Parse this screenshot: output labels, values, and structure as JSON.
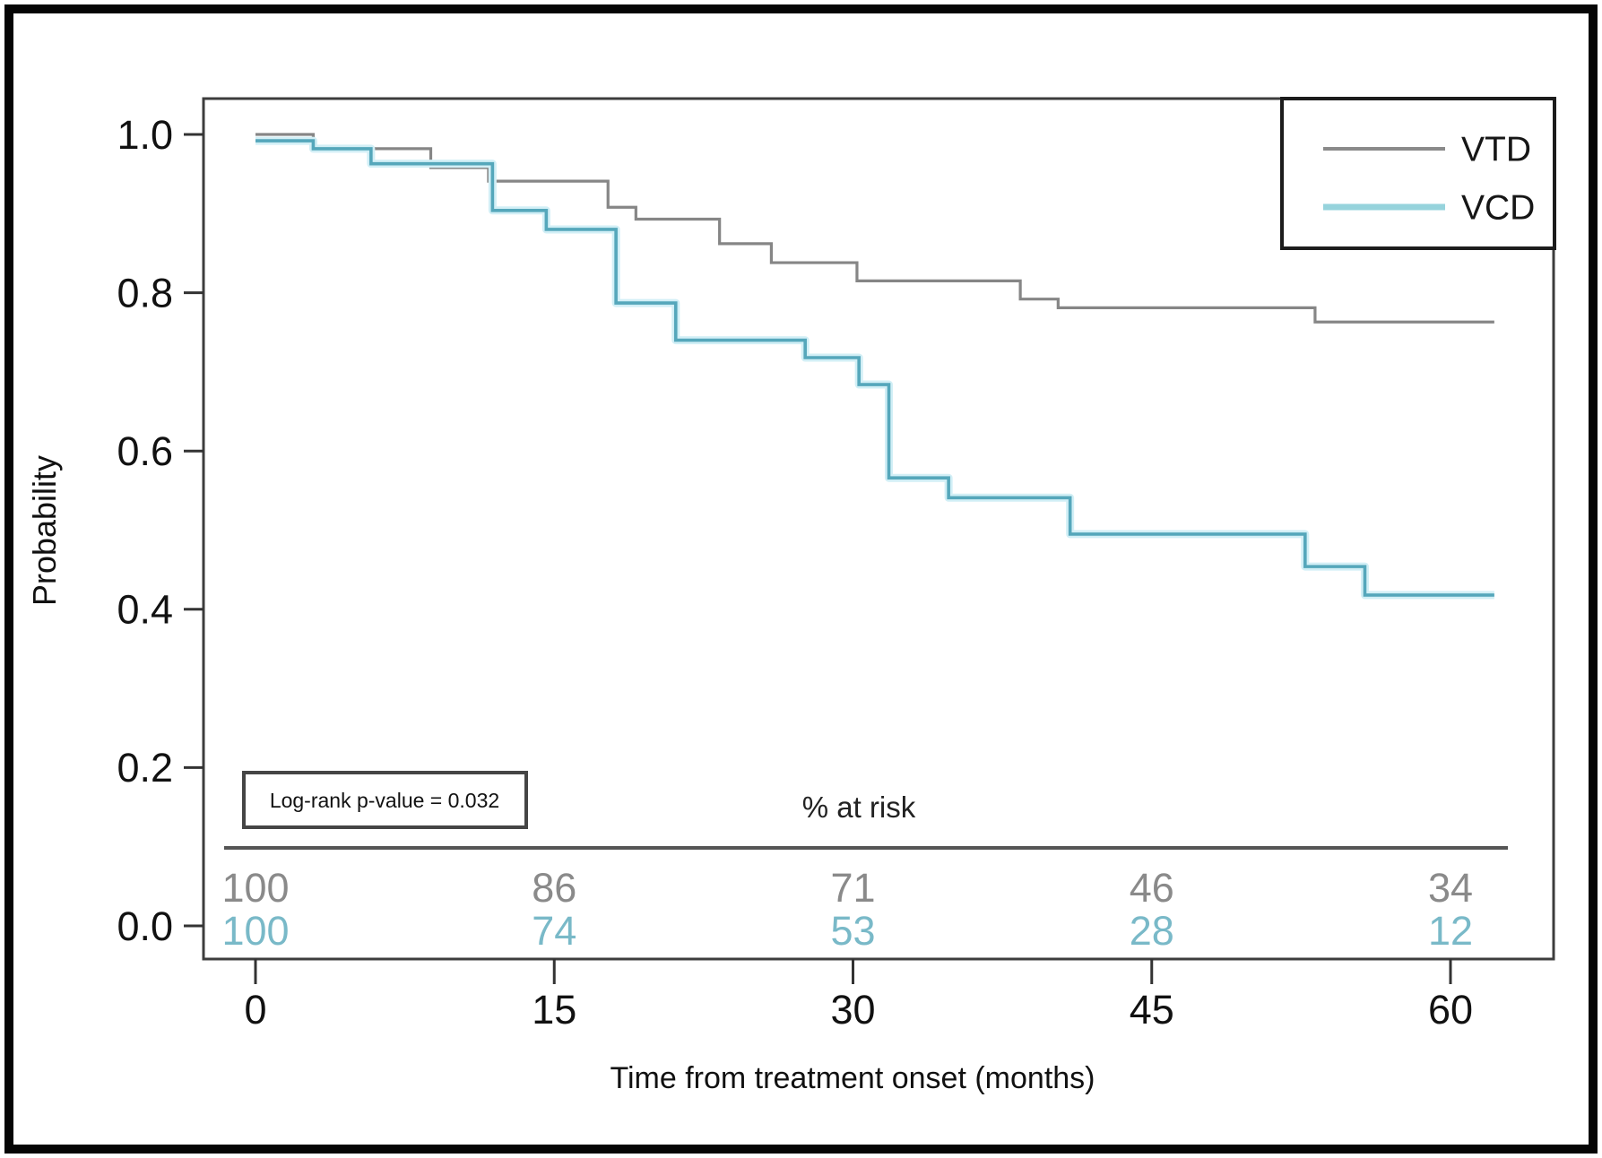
{
  "chart_data": {
    "type": "line",
    "subtype": "kaplan-meier-step",
    "title": "",
    "xlabel": "Time from treatment onset (months)",
    "ylabel": "Probability",
    "xlim": [
      0,
      63
    ],
    "ylim": [
      0.0,
      1.0
    ],
    "grid": false,
    "legend_position": "top-right",
    "annotation": "Log-rank p-value = 0.032",
    "x_ticks": [
      {
        "v": 0,
        "label": "0"
      },
      {
        "v": 15,
        "label": "15"
      },
      {
        "v": 30,
        "label": "30"
      },
      {
        "v": 45,
        "label": "45"
      },
      {
        "v": 60,
        "label": "60"
      }
    ],
    "y_ticks": [
      {
        "v": 1.0,
        "label": "1.0"
      },
      {
        "v": 0.8,
        "label": "0.8"
      },
      {
        "v": 0.6,
        "label": "0.6"
      },
      {
        "v": 0.4,
        "label": "0.4"
      },
      {
        "v": 0.2,
        "label": "0.2"
      },
      {
        "v": 0.0,
        "label": "0.0"
      }
    ],
    "series": [
      {
        "name": "VTD",
        "color": "#868686",
        "legend_color": "#8a8a8a",
        "end": 62.2,
        "steps": [
          [
            0,
            1.0
          ],
          [
            2.9,
            0.982
          ],
          [
            8.8,
            0.958
          ],
          [
            11.7,
            0.941
          ],
          [
            17.7,
            0.908
          ],
          [
            19.1,
            0.893
          ],
          [
            23.3,
            0.862
          ],
          [
            25.9,
            0.838
          ],
          [
            30.2,
            0.815
          ],
          [
            38.4,
            0.792
          ],
          [
            40.3,
            0.781
          ],
          [
            53.2,
            0.763
          ]
        ]
      },
      {
        "name": "VCD",
        "color": "#55a7bb",
        "halo": "#d2eff6",
        "legend_color": "#96d3dc",
        "end": 62.2,
        "steps": [
          [
            0,
            0.992
          ],
          [
            2.9,
            0.982
          ],
          [
            5.8,
            0.963
          ],
          [
            11.9,
            0.904
          ],
          [
            14.6,
            0.88
          ],
          [
            18.1,
            0.787
          ],
          [
            21.1,
            0.74
          ],
          [
            27.6,
            0.718
          ],
          [
            30.3,
            0.684
          ],
          [
            31.8,
            0.566
          ],
          [
            34.8,
            0.541
          ],
          [
            40.9,
            0.495
          ],
          [
            52.7,
            0.454
          ],
          [
            55.7,
            0.418
          ]
        ]
      }
    ],
    "risk_table": {
      "header": "% at risk",
      "times": [
        0,
        15,
        30,
        45,
        60
      ],
      "rows": [
        {
          "name": "VTD",
          "color": "#8a8a8a",
          "values": [
            "100",
            "86",
            "71",
            "46",
            "34"
          ]
        },
        {
          "name": "VCD",
          "color": "#79b9c8",
          "values": [
            "100",
            "74",
            "53",
            "28",
            "12"
          ]
        }
      ]
    }
  }
}
